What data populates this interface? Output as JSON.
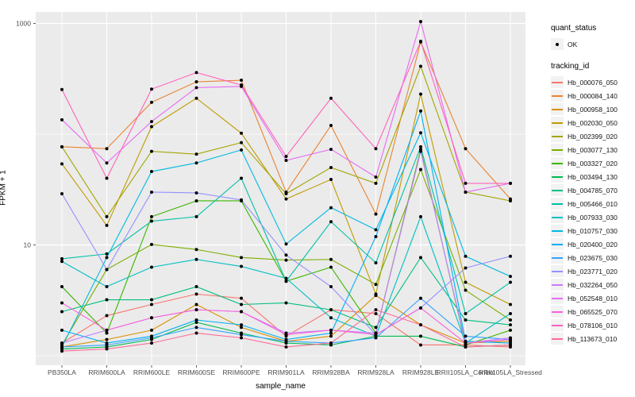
{
  "figure": {
    "background": "#FFFFFF",
    "panel_bg": "#EBEBEB",
    "grid_color": "#FFFFFF",
    "tick_text_color": "#4D4D4D",
    "point_color": "#000000"
  },
  "legend": {
    "quant_status_title": "quant_status",
    "quant_status_ok_label": "OK",
    "tracking_id_title": "tracking_id"
  },
  "chart_data": {
    "type": "line",
    "title": "",
    "xlabel": "sample_name",
    "ylabel": "FPKM + 1",
    "y_scale": "log10",
    "ylim": [
      0.8,
      2000
    ],
    "grid": true,
    "legend_position": "right",
    "y_ticks": [
      {
        "value": 10,
        "label": "10"
      },
      {
        "value": 1000,
        "label": "1000"
      }
    ],
    "minor_gridline_values": [
      1,
      100
    ],
    "categories": [
      "PB350LA",
      "RRIM600LA",
      "RRIM600LE",
      "RRIM600SE",
      "RRIM600PE",
      "RRIM901LA",
      "RRIM928BA",
      "RRIM928LA",
      "RRIM928LE",
      "RRII105LA_Control",
      "RRII105LA_Stressed"
    ],
    "point_marker": {
      "shape": "dot",
      "color": "#000000",
      "label": "OK"
    },
    "series": [
      {
        "name": "Hb_000076_050",
        "color": "#F8766D",
        "values": [
          1.3,
          2.3,
          2.9,
          3.6,
          3.3,
          1.5,
          2.6,
          2.4,
          1.25,
          1.25,
          1.2
        ]
      },
      {
        "name": "Hb_000084_140",
        "color": "#EA8331",
        "values": [
          77,
          74,
          194,
          297,
          307,
          30,
          120,
          19,
          680,
          74,
          26
        ]
      },
      {
        "name": "Hb_000958_100",
        "color": "#D89000",
        "values": [
          1.2,
          1.4,
          1.7,
          2.9,
          1.8,
          1.35,
          1.5,
          3.5,
          1.9,
          1.3,
          1.35
        ]
      },
      {
        "name": "Hb_002030_050",
        "color": "#C09B00",
        "values": [
          54,
          15,
          117,
          211,
          102,
          26,
          39,
          3.6,
          230,
          4.6,
          2.9
        ]
      },
      {
        "name": "Hb_002399_020",
        "color": "#A3A500",
        "values": [
          77,
          18,
          70,
          66,
          84,
          29,
          50,
          36,
          410,
          30,
          25
        ]
      },
      {
        "name": "Hb_003077_130",
        "color": "#7CAE00",
        "values": [
          1.25,
          6.0,
          10.1,
          9.1,
          7.7,
          7.3,
          7.4,
          4.4,
          48,
          3.9,
          2.1
        ]
      },
      {
        "name": "Hb_003327_020",
        "color": "#39B600",
        "values": [
          4.2,
          1.6,
          18,
          25,
          25,
          4.7,
          6.3,
          1.6,
          73,
          1.25,
          1.7
        ]
      },
      {
        "name": "Hb_003494_130",
        "color": "#00BB4E",
        "values": [
          1.15,
          1.2,
          1.4,
          2.0,
          1.6,
          1.3,
          1.25,
          1.5,
          1.5,
          1.2,
          1.25
        ]
      },
      {
        "name": "Hb_004785_070",
        "color": "#00BF7D",
        "values": [
          2.5,
          3.2,
          3.2,
          4.2,
          2.9,
          3.0,
          2.6,
          1.8,
          7.7,
          2.1,
          1.9
        ]
      },
      {
        "name": "Hb_005466_010",
        "color": "#00C1A3",
        "values": [
          7.5,
          8.3,
          16.4,
          18,
          40,
          4.7,
          16.2,
          6.9,
          77,
          2.4,
          4.6
        ]
      },
      {
        "name": "Hb_007933_030",
        "color": "#00BFC4",
        "values": [
          7.1,
          4.2,
          6.3,
          7.4,
          6.4,
          5.0,
          2.2,
          1.5,
          18,
          1.3,
          2.4
        ]
      },
      {
        "name": "Hb_010757_030",
        "color": "#00BAE0",
        "values": [
          1.2,
          7.7,
          46,
          55,
          72,
          10.2,
          21.7,
          13.7,
          103,
          7.9,
          5.2
        ]
      },
      {
        "name": "Hb_020400_020",
        "color": "#00B0F6",
        "values": [
          1.7,
          1.3,
          1.5,
          2.1,
          1.9,
          1.4,
          1.6,
          11.9,
          162,
          1.35,
          1.3
        ]
      },
      {
        "name": "Hb_023675_030",
        "color": "#35A2FF",
        "values": [
          1.2,
          1.25,
          1.45,
          1.8,
          1.55,
          1.35,
          1.3,
          1.45,
          3.3,
          1.5,
          1.4
        ]
      },
      {
        "name": "Hb_023771_020",
        "color": "#9590FF",
        "values": [
          29,
          6.0,
          30,
          29.5,
          25.5,
          8.1,
          4.2,
          1.55,
          2.7,
          6.2,
          7.9
        ]
      },
      {
        "name": "Hb_032264_050",
        "color": "#C77CFF",
        "values": [
          1.3,
          1.7,
          2.2,
          2.6,
          2.5,
          1.6,
          1.7,
          1.6,
          70,
          1.3,
          1.45
        ]
      },
      {
        "name": "Hb_052548_010",
        "color": "#E76BF3",
        "values": [
          135,
          55,
          130,
          263,
          270,
          58,
          73,
          41,
          1040,
          30,
          36
        ]
      },
      {
        "name": "Hb_065525_070",
        "color": "#FA62DB",
        "values": [
          3.0,
          1.7,
          2.2,
          2.6,
          2.5,
          1.55,
          1.7,
          1.55,
          2.7,
          1.3,
          1.4
        ]
      },
      {
        "name": "Hb_078106_010",
        "color": "#FF62BC",
        "values": [
          253,
          40,
          255,
          360,
          278,
          63,
          211,
          74,
          690,
          36,
          36
        ]
      },
      {
        "name": "Hb_113673_010",
        "color": "#FF6A98",
        "values": [
          1.1,
          1.15,
          1.3,
          1.6,
          1.45,
          1.2,
          1.3,
          2.6,
          1.9,
          1.2,
          1.25
        ]
      }
    ]
  }
}
